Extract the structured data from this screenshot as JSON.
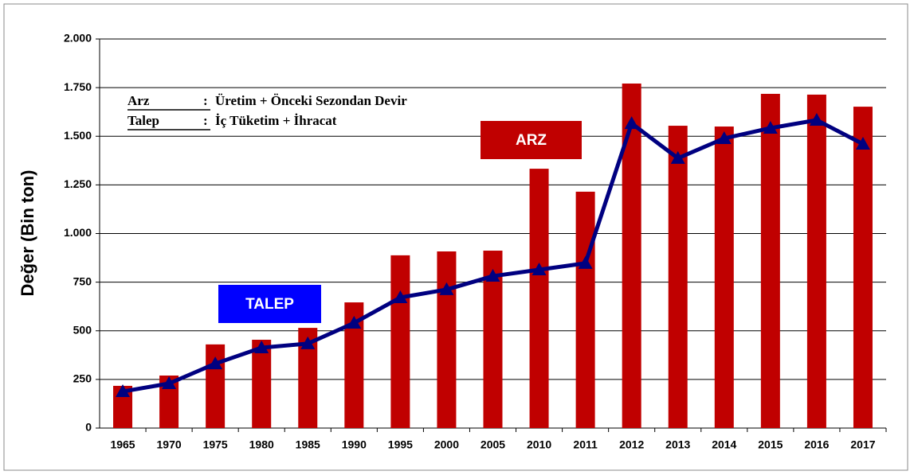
{
  "chart_data": {
    "type": "bar-line",
    "y_label": "Değer (Bin ton)",
    "categories": [
      "1965",
      "1970",
      "1975",
      "1980",
      "1985",
      "1990",
      "1995",
      "2000",
      "2005",
      "2010",
      "2011",
      "2012",
      "2013",
      "2014",
      "2015",
      "2016",
      "2017"
    ],
    "series": [
      {
        "name": "ARZ",
        "type": "bar",
        "color": "#c00000",
        "values": [
          217,
          270,
          430,
          454,
          515,
          646,
          888,
          908,
          912,
          1333,
          1215,
          1771,
          1554,
          1550,
          1718,
          1714,
          1652
        ]
      },
      {
        "name": "TALEP",
        "type": "line",
        "color": "#000080",
        "label_color": "#0000ff",
        "values": [
          188,
          229,
          331,
          413,
          434,
          540,
          671,
          712,
          781,
          814,
          847,
          1566,
          1387,
          1489,
          1542,
          1583,
          1460
        ]
      }
    ],
    "ylim": [
      0,
      2000
    ],
    "yticks": [
      0,
      250,
      500,
      750,
      {
        "value": 1000,
        "label": "1.000"
      },
      {
        "value": 1250,
        "label": "1.250"
      },
      {
        "value": 1500,
        "label": "1.500"
      },
      {
        "value": 1750,
        "label": "1.750"
      },
      {
        "value": 2000,
        "label": "2.000"
      }
    ],
    "grid": true,
    "notes": [
      {
        "key": "Arz",
        "text": "Üretim + Önceki Sezondan Devir"
      },
      {
        "key": "Talep",
        "text": "İç Tüketim + İhracat"
      }
    ]
  }
}
